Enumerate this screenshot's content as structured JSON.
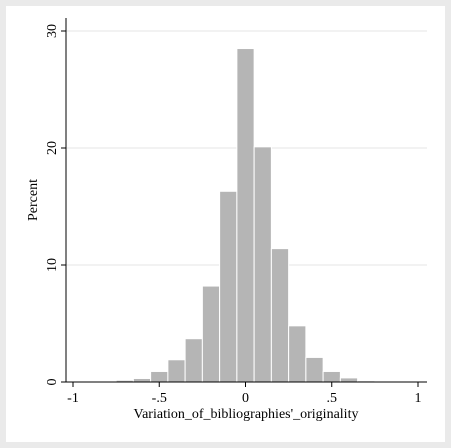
{
  "chart_data": {
    "type": "bar",
    "title": "",
    "xlabel": "Variation_of_bibliographies'_originality",
    "ylabel": "Percent",
    "xlim": [
      -1,
      1
    ],
    "ylim": [
      0,
      30
    ],
    "xticks": [
      {
        "value": -1,
        "label": "-1"
      },
      {
        "value": -0.5,
        "label": "-.5"
      },
      {
        "value": 0,
        "label": "0"
      },
      {
        "value": 0.5,
        "label": ".5"
      },
      {
        "value": 1,
        "label": "1"
      }
    ],
    "yticks": [
      {
        "value": 0,
        "label": "0"
      },
      {
        "value": 10,
        "label": "10"
      },
      {
        "value": 20,
        "label": "20"
      },
      {
        "value": 30,
        "label": "30"
      }
    ],
    "grid": true,
    "legend": "none",
    "bin_width": 0.1,
    "bars": [
      {
        "x0": -0.85,
        "x1": -0.75,
        "value": 0.05
      },
      {
        "x0": -0.75,
        "x1": -0.65,
        "value": 0.15
      },
      {
        "x0": -0.65,
        "x1": -0.55,
        "value": 0.3
      },
      {
        "x0": -0.55,
        "x1": -0.45,
        "value": 0.9
      },
      {
        "x0": -0.45,
        "x1": -0.35,
        "value": 1.9
      },
      {
        "x0": -0.35,
        "x1": -0.25,
        "value": 3.7
      },
      {
        "x0": -0.25,
        "x1": -0.15,
        "value": 8.2
      },
      {
        "x0": -0.15,
        "x1": -0.05,
        "value": 16.3
      },
      {
        "x0": -0.05,
        "x1": 0.05,
        "value": 28.5
      },
      {
        "x0": 0.05,
        "x1": 0.15,
        "value": 20.1
      },
      {
        "x0": 0.15,
        "x1": 0.25,
        "value": 11.4
      },
      {
        "x0": 0.25,
        "x1": 0.35,
        "value": 4.8
      },
      {
        "x0": 0.35,
        "x1": 0.45,
        "value": 2.1
      },
      {
        "x0": 0.45,
        "x1": 0.55,
        "value": 0.9
      },
      {
        "x0": 0.55,
        "x1": 0.65,
        "value": 0.35
      },
      {
        "x0": 0.65,
        "x1": 0.75,
        "value": 0.1
      }
    ],
    "colors": {
      "outer_background": "#eaeaea",
      "plot_background": "#ffffff",
      "bar_fill": "#b5b5b5",
      "bar_edge": "#ffffff",
      "grid": "#e6e6e6",
      "axis": "#000000"
    }
  }
}
